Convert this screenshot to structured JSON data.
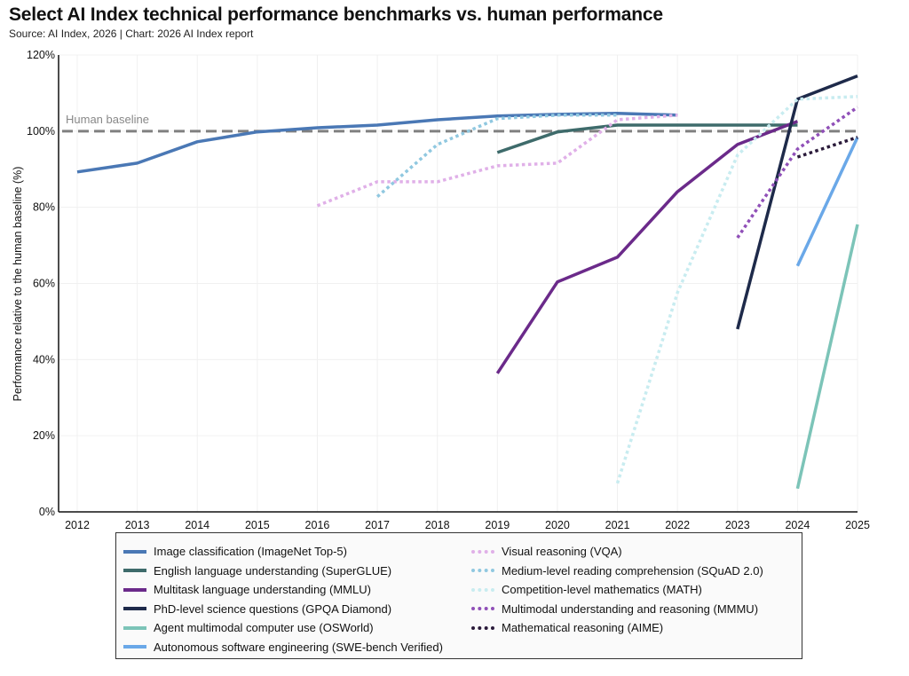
{
  "title": "Select AI Index technical performance benchmarks vs. human performance",
  "subtitle": "Source: AI Index, 2026 | Chart: 2026 AI Index report",
  "chart_data": {
    "type": "line",
    "title": "Select AI Index technical performance benchmarks vs. human performance",
    "ylabel": "Performance relative to the human baseline (%)",
    "xlabel": "",
    "x": [
      2012,
      2013,
      2014,
      2015,
      2016,
      2017,
      2018,
      2019,
      2020,
      2021,
      2022,
      2023,
      2024,
      2025
    ],
    "xlim": [
      2012,
      2025
    ],
    "ylim": [
      0,
      120
    ],
    "yticks": [
      0,
      20,
      40,
      60,
      80,
      100,
      120
    ],
    "ytick_labels": [
      "0%",
      "20%",
      "40%",
      "60%",
      "80%",
      "100%",
      "120%"
    ],
    "grid": true,
    "legend_position": "bottom",
    "reference_line": {
      "value": 100,
      "label": "Human baseline",
      "color": "#808080",
      "style": "dashed"
    },
    "series": [
      {
        "name": "Image classification (ImageNet Top-5)",
        "color": "#4a78b5",
        "style": "solid",
        "points": [
          [
            2012,
            89.3
          ],
          [
            2013,
            91.6
          ],
          [
            2014,
            97.2
          ],
          [
            2015,
            99.8
          ],
          [
            2016,
            100.9
          ],
          [
            2017,
            101.6
          ],
          [
            2018,
            103.0
          ],
          [
            2019,
            104.0
          ],
          [
            2020,
            104.4
          ],
          [
            2021,
            104.7
          ],
          [
            2022,
            104.2
          ]
        ]
      },
      {
        "name": "English language understanding (SuperGLUE)",
        "color": "#3e6b6b",
        "style": "solid",
        "points": [
          [
            2019,
            94.4
          ],
          [
            2020,
            99.8
          ],
          [
            2021,
            101.6
          ],
          [
            2022,
            101.6
          ],
          [
            2023,
            101.6
          ],
          [
            2024,
            101.6
          ]
        ]
      },
      {
        "name": "Multitask language understanding (MMLU)",
        "color": "#6b2a8a",
        "style": "solid",
        "points": [
          [
            2019,
            36.4
          ],
          [
            2020,
            60.4
          ],
          [
            2021,
            66.9
          ],
          [
            2022,
            84.1
          ],
          [
            2023,
            96.5
          ],
          [
            2024,
            102.6
          ]
        ]
      },
      {
        "name": "PhD-level science questions (GPQA Diamond)",
        "color": "#1e2a4a",
        "style": "solid",
        "points": [
          [
            2023,
            48.0
          ],
          [
            2024,
            108.4
          ],
          [
            2025,
            114.5
          ]
        ]
      },
      {
        "name": "Agent multimodal computer use (OSWorld)",
        "color": "#7cc4b8",
        "style": "solid",
        "points": [
          [
            2024,
            6.1
          ],
          [
            2025,
            75.5
          ]
        ]
      },
      {
        "name": "Autonomous software engineering (SWE-bench Verified)",
        "color": "#6aa8e8",
        "style": "solid",
        "points": [
          [
            2024,
            64.6
          ],
          [
            2025,
            98.4
          ]
        ]
      },
      {
        "name": "Visual reasoning (VQA)",
        "color": "#e0b0e8",
        "style": "dotted",
        "points": [
          [
            2016,
            80.4
          ],
          [
            2017,
            86.7
          ],
          [
            2018,
            86.7
          ],
          [
            2019,
            90.9
          ],
          [
            2020,
            91.6
          ],
          [
            2021,
            103.0
          ],
          [
            2022,
            104.2
          ]
        ]
      },
      {
        "name": "Medium-level reading comprehension (SQuAD 2.0)",
        "color": "#90c8e0",
        "style": "dotted",
        "points": [
          [
            2017,
            82.8
          ],
          [
            2018,
            96.5
          ],
          [
            2019,
            103.3
          ],
          [
            2020,
            104.2
          ],
          [
            2021,
            104.2
          ]
        ]
      },
      {
        "name": "Competition-level mathematics (MATH)",
        "color": "#c8ecf0",
        "style": "dotted",
        "points": [
          [
            2021,
            7.5
          ],
          [
            2022,
            57.6
          ],
          [
            2023,
            93.7
          ],
          [
            2024,
            108.4
          ],
          [
            2025,
            109.1
          ]
        ]
      },
      {
        "name": "Multimodal understanding and reasoning (MMMU)",
        "color": "#9050b8",
        "style": "dotted",
        "points": [
          [
            2023,
            72.0
          ],
          [
            2024,
            95.3
          ],
          [
            2025,
            106.3
          ]
        ]
      },
      {
        "name": "Mathematical reasoning (AIME)",
        "color": "#2a1a3a",
        "style": "dotted",
        "points": [
          [
            2024,
            93.2
          ],
          [
            2025,
            98.4
          ]
        ]
      }
    ]
  }
}
